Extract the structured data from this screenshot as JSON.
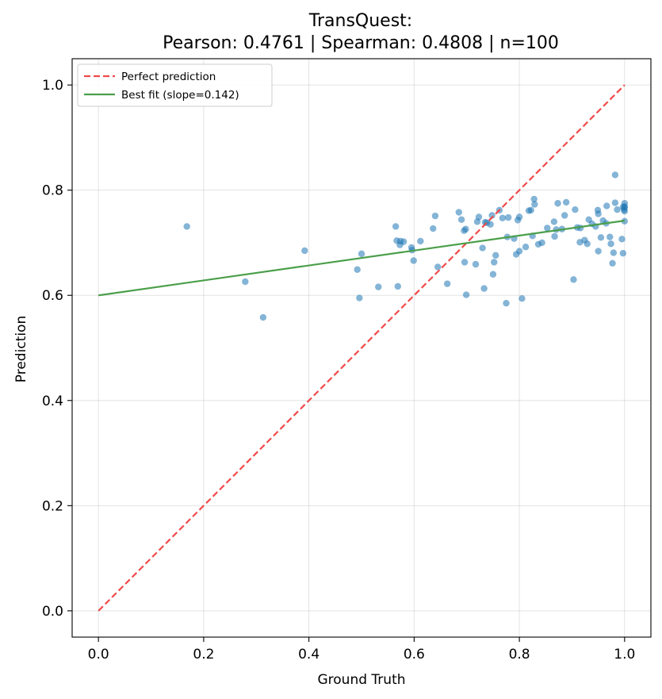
{
  "chart_data": {
    "type": "scatter",
    "title_line1": "TransQuest:",
    "title_line2": "Pearson: 0.4761 | Spearman: 0.4808 | n=100",
    "xlabel": "Ground Truth",
    "ylabel": "Prediction",
    "xlim": [
      -0.05,
      1.05
    ],
    "ylim": [
      -0.05,
      1.05
    ],
    "xticks": [
      0.0,
      0.2,
      0.4,
      0.6,
      0.8,
      1.0
    ],
    "yticks": [
      0.0,
      0.2,
      0.4,
      0.6,
      0.8,
      1.0
    ],
    "xtick_labels": [
      "0.0",
      "0.2",
      "0.4",
      "0.6",
      "0.8",
      "1.0"
    ],
    "ytick_labels": [
      "0.0",
      "0.2",
      "0.4",
      "0.6",
      "0.8",
      "1.0"
    ],
    "grid": true,
    "legend_position": "upper-left",
    "legend": [
      {
        "label": "Perfect prediction",
        "color": "#f04a4a",
        "style": "dashed"
      },
      {
        "label": "Best fit (slope=0.142)",
        "color": "#4a9f4a",
        "style": "solid"
      }
    ],
    "perfect_line": {
      "x": [
        0,
        1
      ],
      "y": [
        0,
        1
      ]
    },
    "fit_line": {
      "x": [
        0,
        1
      ],
      "y": [
        0.6,
        0.742
      ]
    },
    "point_color": "#1f77b4",
    "point_alpha": 0.55,
    "points": [
      [
        0.168,
        0.731
      ],
      [
        0.279,
        0.626
      ],
      [
        0.313,
        0.558
      ],
      [
        0.392,
        0.685
      ],
      [
        0.492,
        0.649
      ],
      [
        0.496,
        0.595
      ],
      [
        0.5,
        0.679
      ],
      [
        0.532,
        0.616
      ],
      [
        0.565,
        0.731
      ],
      [
        0.567,
        0.704
      ],
      [
        0.569,
        0.617
      ],
      [
        0.573,
        0.696
      ],
      [
        0.574,
        0.703
      ],
      [
        0.58,
        0.702
      ],
      [
        0.595,
        0.691
      ],
      [
        0.596,
        0.686
      ],
      [
        0.599,
        0.666
      ],
      [
        0.636,
        0.727
      ],
      [
        0.64,
        0.751
      ],
      [
        0.645,
        0.654
      ],
      [
        0.663,
        0.622
      ],
      [
        0.685,
        0.758
      ],
      [
        0.69,
        0.744
      ],
      [
        0.695,
        0.723
      ],
      [
        0.696,
        0.663
      ],
      [
        0.698,
        0.726
      ],
      [
        0.699,
        0.601
      ],
      [
        0.717,
        0.659
      ],
      [
        0.72,
        0.74
      ],
      [
        0.723,
        0.749
      ],
      [
        0.73,
        0.69
      ],
      [
        0.733,
        0.613
      ],
      [
        0.735,
        0.739
      ],
      [
        0.745,
        0.735
      ],
      [
        0.748,
        0.752
      ],
      [
        0.75,
        0.64
      ],
      [
        0.752,
        0.663
      ],
      [
        0.755,
        0.676
      ],
      [
        0.762,
        0.762
      ],
      [
        0.768,
        0.747
      ],
      [
        0.775,
        0.585
      ],
      [
        0.777,
        0.711
      ],
      [
        0.779,
        0.748
      ],
      [
        0.79,
        0.708
      ],
      [
        0.794,
        0.678
      ],
      [
        0.797,
        0.743
      ],
      [
        0.8,
        0.684
      ],
      [
        0.8,
        0.749
      ],
      [
        0.805,
        0.594
      ],
      [
        0.812,
        0.692
      ],
      [
        0.818,
        0.761
      ],
      [
        0.822,
        0.762
      ],
      [
        0.825,
        0.713
      ],
      [
        0.828,
        0.783
      ],
      [
        0.829,
        0.773
      ],
      [
        0.836,
        0.697
      ],
      [
        0.853,
        0.728
      ],
      [
        0.866,
        0.74
      ],
      [
        0.867,
        0.712
      ],
      [
        0.87,
        0.725
      ],
      [
        0.873,
        0.775
      ],
      [
        0.881,
        0.726
      ],
      [
        0.886,
        0.752
      ],
      [
        0.889,
        0.777
      ],
      [
        0.903,
        0.63
      ],
      [
        0.906,
        0.763
      ],
      [
        0.91,
        0.729
      ],
      [
        0.915,
        0.701
      ],
      [
        0.924,
        0.705
      ],
      [
        0.929,
        0.698
      ],
      [
        0.932,
        0.744
      ],
      [
        0.938,
        0.736
      ],
      [
        0.945,
        0.731
      ],
      [
        0.949,
        0.762
      ],
      [
        0.95,
        0.755
      ],
      [
        0.95,
        0.684
      ],
      [
        0.955,
        0.71
      ],
      [
        0.965,
        0.737
      ],
      [
        0.966,
        0.77
      ],
      [
        0.972,
        0.711
      ],
      [
        0.974,
        0.698
      ],
      [
        0.977,
        0.661
      ],
      [
        0.979,
        0.681
      ],
      [
        0.982,
        0.829
      ],
      [
        0.982,
        0.776
      ],
      [
        0.986,
        0.763
      ],
      [
        0.995,
        0.707
      ],
      [
        0.997,
        0.68
      ],
      [
        0.999,
        0.763
      ],
      [
        1.0,
        0.767
      ],
      [
        1.0,
        0.769
      ],
      [
        1.0,
        0.775
      ],
      [
        1.0,
        0.741
      ],
      [
        1.0,
        0.76
      ],
      [
        0.997,
        0.768
      ],
      [
        0.959,
        0.742
      ],
      [
        0.916,
        0.728
      ],
      [
        0.843,
        0.7
      ],
      [
        0.612,
        0.703
      ],
      [
        0.738,
        0.738
      ]
    ]
  }
}
